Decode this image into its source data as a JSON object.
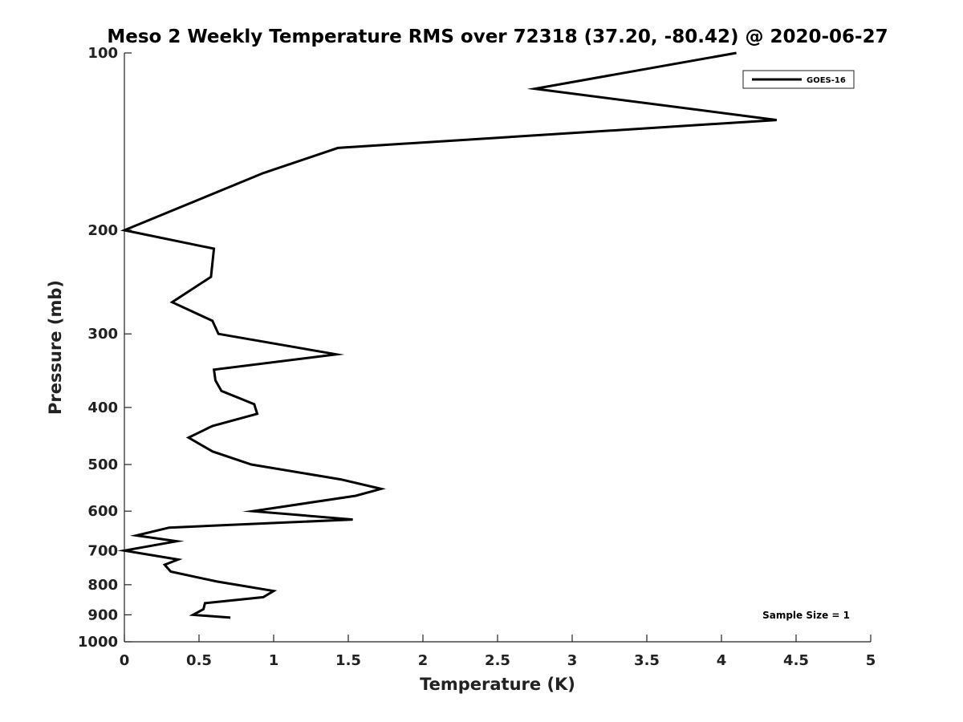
{
  "chart_data": {
    "type": "line",
    "title": "Meso 2 Weekly Temperature RMS over 72318 (37.20, -80.42) @ 2020-06-27",
    "xlabel": "Temperature (K)",
    "ylabel": "Pressure (mb)",
    "xlim": [
      0,
      5
    ],
    "ylim": [
      100,
      1000
    ],
    "y_scale": "log",
    "y_reversed": true,
    "grid": false,
    "x_ticks": [
      "0",
      "0.5",
      "1",
      "1.5",
      "2",
      "2.5",
      "3",
      "3.5",
      "4",
      "4.5",
      "5"
    ],
    "y_ticks": [
      "100",
      "200",
      "300",
      "400",
      "500",
      "600",
      "700",
      "800",
      "900",
      "1000"
    ],
    "legend_position": "top-right",
    "annotation": "Sample Size = 1",
    "series": [
      {
        "name": "GOES-16",
        "color": "#000000",
        "points": [
          [
            4.1,
            100
          ],
          [
            2.75,
            115
          ],
          [
            4.37,
            130
          ],
          [
            1.43,
            145
          ],
          [
            0.93,
            160
          ],
          [
            0.0,
            200
          ],
          [
            0.6,
            215
          ],
          [
            0.58,
            240
          ],
          [
            0.32,
            265
          ],
          [
            0.59,
            285
          ],
          [
            0.63,
            300
          ],
          [
            1.42,
            325
          ],
          [
            0.6,
            345
          ],
          [
            0.61,
            360
          ],
          [
            0.65,
            375
          ],
          [
            0.87,
            395
          ],
          [
            0.89,
            410
          ],
          [
            0.59,
            430
          ],
          [
            0.43,
            450
          ],
          [
            0.59,
            475
          ],
          [
            0.85,
            500
          ],
          [
            1.45,
            530
          ],
          [
            1.72,
            550
          ],
          [
            1.55,
            565
          ],
          [
            0.86,
            600
          ],
          [
            1.53,
            620
          ],
          [
            0.3,
            640
          ],
          [
            0.08,
            660
          ],
          [
            0.35,
            675
          ],
          [
            0.0,
            700
          ],
          [
            0.36,
            725
          ],
          [
            0.27,
            740
          ],
          [
            0.31,
            760
          ],
          [
            0.62,
            790
          ],
          [
            1.0,
            820
          ],
          [
            0.93,
            840
          ],
          [
            0.54,
            860
          ],
          [
            0.53,
            880
          ],
          [
            0.46,
            900
          ],
          [
            0.71,
            910
          ]
        ]
      }
    ]
  }
}
